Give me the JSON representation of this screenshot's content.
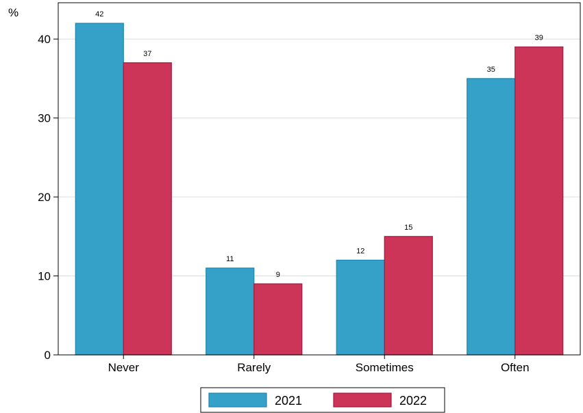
{
  "chart_data": {
    "type": "bar",
    "ylabel": "%",
    "categories": [
      "Never",
      "Rarely",
      "Sometimes",
      "Often"
    ],
    "series": [
      {
        "name": "2021",
        "color": "#35a0c8",
        "stroke": "#1f86ad",
        "values": [
          42,
          11,
          12,
          35
        ]
      },
      {
        "name": "2022",
        "color": "#cc3458",
        "stroke": "#a01b3e",
        "values": [
          37,
          9,
          15,
          39
        ]
      }
    ],
    "ylim": [
      0,
      44.6
    ],
    "yticks": [
      0,
      10,
      20,
      30,
      40
    ],
    "grid": true,
    "legend": "bottom"
  }
}
